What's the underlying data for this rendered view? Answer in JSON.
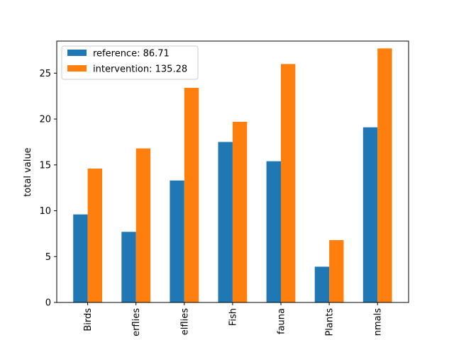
{
  "chart_data": {
    "type": "bar",
    "title": "",
    "xlabel": "",
    "ylabel": "total value",
    "categories": [
      "Birds",
      "erflies",
      "elflies",
      "Fish",
      "fauna",
      "Plants",
      "nmals"
    ],
    "series": [
      {
        "name": "reference: 86.71",
        "color": "#1f77b4",
        "values": [
          9.6,
          7.7,
          13.3,
          17.5,
          15.4,
          3.9,
          19.1
        ]
      },
      {
        "name": "intervention: 135.28",
        "color": "#ff7f0e",
        "values": [
          14.6,
          16.8,
          23.4,
          19.7,
          26.0,
          6.8,
          27.7
        ]
      }
    ],
    "ylim": [
      0,
      28.5
    ],
    "yticks": [
      0,
      5,
      10,
      15,
      20,
      25
    ],
    "grid": false,
    "legend_position": "top-left"
  }
}
